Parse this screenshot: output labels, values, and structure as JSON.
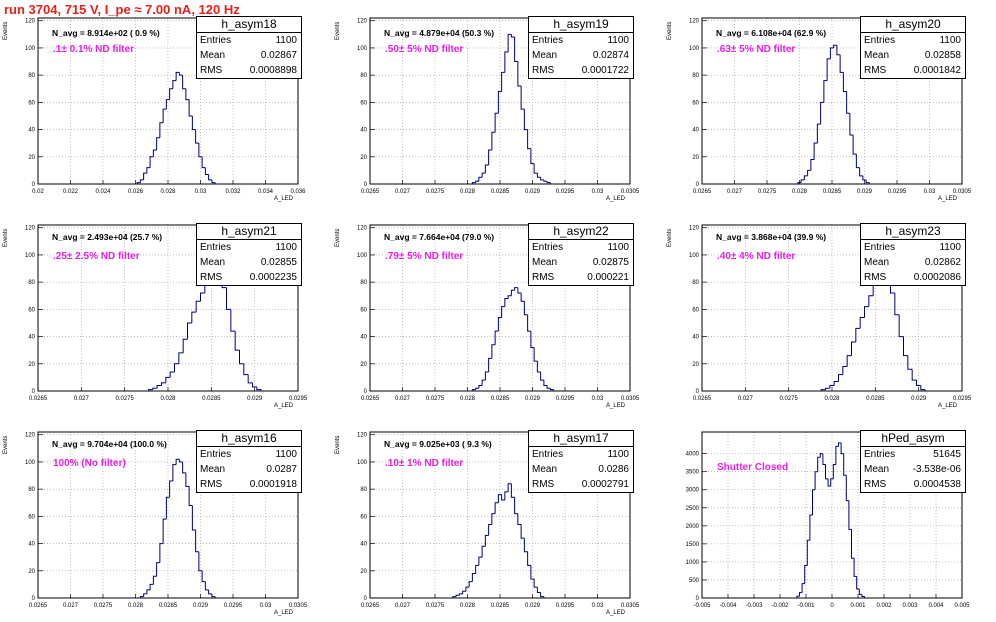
{
  "page_title": "run 3704,   715 V, I_pe ≈ 7.00 nA, 120 Hz",
  "chart_data": [
    {
      "type": "histogram",
      "name": "h_asym18",
      "entries": "1100",
      "mean": "0.02867",
      "rms": "0.0008898",
      "n_avg_text": "N_avg = 8.914e+02 ( 0.9 %)",
      "filter_text": ".1± 0.1% ND filter",
      "ylabel": "Events",
      "xlabel": "A_LED",
      "xlim": [
        0.02,
        0.036
      ],
      "ylim": [
        0,
        122
      ],
      "xticks": [
        0.02,
        0.022,
        0.024,
        0.026,
        0.028,
        0.03,
        0.032,
        0.034,
        0.036
      ],
      "xtick_labels": [
        "0.02",
        "0.022",
        "0.024",
        "0.026",
        "0.028",
        "0.03",
        "0.032",
        "0.034",
        "0.036"
      ],
      "yticks": [
        0,
        20,
        40,
        60,
        80,
        100,
        120
      ],
      "ytick_labels": [
        "0",
        "20",
        "40",
        "60",
        "80",
        "100",
        "120"
      ],
      "bin_width": 0.0002,
      "x": [
        0.0262,
        0.0264,
        0.0266,
        0.0268,
        0.027,
        0.0272,
        0.0274,
        0.0276,
        0.0278,
        0.028,
        0.0282,
        0.0284,
        0.0286,
        0.0288,
        0.029,
        0.0292,
        0.0294,
        0.0296,
        0.0298,
        0.03,
        0.0302,
        0.0304,
        0.0306,
        0.0308
      ],
      "values": [
        1,
        3,
        8,
        12,
        20,
        25,
        34,
        45,
        55,
        62,
        70,
        76,
        82,
        80,
        70,
        62,
        50,
        40,
        30,
        20,
        12,
        7,
        3,
        1
      ]
    },
    {
      "type": "histogram",
      "name": "h_asym19",
      "entries": "1100",
      "mean": "0.02874",
      "rms": "0.0001722",
      "n_avg_text": "N_avg = 4.879e+04 (50.3 %)",
      "filter_text": ".50± 5% ND filter",
      "ylabel": "Events",
      "xlabel": "A_LED",
      "xlim": [
        0.0265,
        0.0305
      ],
      "ylim": [
        0,
        122
      ],
      "xticks": [
        0.0265,
        0.027,
        0.0275,
        0.028,
        0.0285,
        0.029,
        0.0295,
        0.03,
        0.0305
      ],
      "xtick_labels": [
        "0.0265",
        "0.027",
        "0.0275",
        "0.028",
        "0.0285",
        "0.029",
        "0.0295",
        "0.03",
        "0.0305"
      ],
      "yticks": [
        0,
        20,
        40,
        60,
        80,
        100,
        120
      ],
      "ytick_labels": [
        "0",
        "20",
        "40",
        "60",
        "80",
        "100",
        "120"
      ],
      "bin_width": 5e-05,
      "x": [
        0.0281,
        0.02815,
        0.0282,
        0.02825,
        0.0283,
        0.02835,
        0.0284,
        0.02845,
        0.0285,
        0.02855,
        0.0286,
        0.02865,
        0.0287,
        0.02875,
        0.0288,
        0.02885,
        0.0289,
        0.02895,
        0.029,
        0.02905,
        0.0291,
        0.02915,
        0.0292,
        0.02925
      ],
      "values": [
        1,
        2,
        5,
        8,
        14,
        25,
        38,
        52,
        68,
        82,
        97,
        110,
        108,
        90,
        72,
        55,
        40,
        26,
        15,
        8,
        5,
        3,
        2,
        1
      ]
    },
    {
      "type": "histogram",
      "name": "h_asym20",
      "entries": "1100",
      "mean": "0.02858",
      "rms": "0.0001842",
      "n_avg_text": "N_avg = 6.108e+04 (62.9 %)",
      "filter_text": ".63± 5% ND filter",
      "ylabel": "Events",
      "xlabel": "A_LED",
      "xlim": [
        0.0265,
        0.0305
      ],
      "ylim": [
        0,
        122
      ],
      "xticks": [
        0.0265,
        0.027,
        0.0275,
        0.028,
        0.0285,
        0.029,
        0.0295,
        0.03,
        0.0305
      ],
      "xtick_labels": [
        "0.0265",
        "0.027",
        "0.0275",
        "0.028",
        "0.0285",
        "0.029",
        "0.0295",
        "0.03",
        "0.0305"
      ],
      "yticks": [
        0,
        20,
        40,
        60,
        80,
        100,
        120
      ],
      "ytick_labels": [
        "0",
        "20",
        "40",
        "60",
        "80",
        "100",
        "120"
      ],
      "bin_width": 5e-05,
      "x": [
        0.028,
        0.02805,
        0.0281,
        0.02815,
        0.0282,
        0.02825,
        0.0283,
        0.02835,
        0.0284,
        0.02845,
        0.0285,
        0.02855,
        0.0286,
        0.02865,
        0.0287,
        0.02875,
        0.0288,
        0.02885,
        0.0289,
        0.02895,
        0.029,
        0.02905
      ],
      "values": [
        1,
        3,
        6,
        10,
        18,
        30,
        44,
        60,
        76,
        92,
        100,
        102,
        95,
        82,
        68,
        52,
        36,
        22,
        12,
        6,
        3,
        1
      ]
    },
    {
      "type": "histogram",
      "name": "h_asym21",
      "entries": "1100",
      "mean": "0.02855",
      "rms": "0.0002235",
      "n_avg_text": "N_avg = 2.493e+04 (25.7 %)",
      "filter_text": ".25± 2.5% ND filter",
      "ylabel": "Events",
      "xlabel": "A_LED",
      "xlim": [
        0.0265,
        0.0295
      ],
      "ylim": [
        0,
        122
      ],
      "xticks": [
        0.0265,
        0.027,
        0.0275,
        0.028,
        0.0285,
        0.029,
        0.0295
      ],
      "xtick_labels": [
        "0.0265",
        "0.027",
        "0.0275",
        "0.028",
        "0.0285",
        "0.029",
        "0.0295"
      ],
      "yticks": [
        0,
        20,
        40,
        60,
        80,
        100,
        120
      ],
      "ytick_labels": [
        "0",
        "20",
        "40",
        "60",
        "80",
        "100",
        "120"
      ],
      "bin_width": 5e-05,
      "x": [
        0.0278,
        0.02785,
        0.0279,
        0.02795,
        0.028,
        0.02805,
        0.0281,
        0.02815,
        0.0282,
        0.02825,
        0.0283,
        0.02835,
        0.0284,
        0.02845,
        0.0285,
        0.02855,
        0.0286,
        0.02865,
        0.0287,
        0.02875,
        0.0288,
        0.02885,
        0.0289,
        0.02895,
        0.029,
        0.02905
      ],
      "values": [
        1,
        2,
        4,
        6,
        10,
        14,
        20,
        28,
        38,
        50,
        58,
        66,
        72,
        80,
        85,
        90,
        88,
        76,
        60,
        44,
        30,
        20,
        12,
        6,
        3,
        1
      ]
    },
    {
      "type": "histogram",
      "name": "h_asym22",
      "entries": "1100",
      "mean": "0.02875",
      "rms": "0.000221",
      "n_avg_text": "N_avg = 7.664e+04 (79.0 %)",
      "filter_text": ".79± 5% ND filter",
      "ylabel": "Events",
      "xlabel": "A_LED",
      "xlim": [
        0.0265,
        0.0305
      ],
      "ylim": [
        0,
        122
      ],
      "xticks": [
        0.0265,
        0.027,
        0.0275,
        0.028,
        0.0285,
        0.029,
        0.0295,
        0.03,
        0.0305
      ],
      "xtick_labels": [
        "0.0265",
        "0.027",
        "0.0275",
        "0.028",
        "0.0285",
        "0.029",
        "0.0295",
        "0.03",
        "0.0305"
      ],
      "yticks": [
        0,
        20,
        40,
        60,
        80,
        100,
        120
      ],
      "ytick_labels": [
        "0",
        "20",
        "40",
        "60",
        "80",
        "100",
        "120"
      ],
      "bin_width": 5e-05,
      "x": [
        0.0281,
        0.02815,
        0.0282,
        0.02825,
        0.0283,
        0.02835,
        0.0284,
        0.02845,
        0.0285,
        0.02855,
        0.0286,
        0.02865,
        0.0287,
        0.02875,
        0.0288,
        0.02885,
        0.0289,
        0.02895,
        0.029,
        0.02905,
        0.0291,
        0.02915,
        0.0292,
        0.02925,
        0.0293
      ],
      "values": [
        1,
        2,
        4,
        8,
        14,
        24,
        34,
        44,
        54,
        62,
        68,
        70,
        74,
        76,
        72,
        66,
        56,
        44,
        32,
        22,
        14,
        8,
        4,
        2,
        1
      ]
    },
    {
      "type": "histogram",
      "name": "h_asym23",
      "entries": "1100",
      "mean": "0.02862",
      "rms": "0.0002086",
      "n_avg_text": "N_avg = 3.868e+04 (39.9 %)",
      "filter_text": ".40± 4% ND filter",
      "ylabel": "Events",
      "xlabel": "A_LED",
      "xlim": [
        0.0265,
        0.0295
      ],
      "ylim": [
        0,
        122
      ],
      "xticks": [
        0.0265,
        0.027,
        0.0275,
        0.028,
        0.0285,
        0.029,
        0.0295
      ],
      "xtick_labels": [
        "0.0265",
        "0.027",
        "0.0275",
        "0.028",
        "0.0285",
        "0.029",
        "0.0295"
      ],
      "yticks": [
        0,
        20,
        40,
        60,
        80,
        100,
        120
      ],
      "ytick_labels": [
        "0",
        "20",
        "40",
        "60",
        "80",
        "100",
        "120"
      ],
      "bin_width": 5e-05,
      "x": [
        0.0279,
        0.02795,
        0.028,
        0.02805,
        0.0281,
        0.02815,
        0.0282,
        0.02825,
        0.0283,
        0.02835,
        0.0284,
        0.02845,
        0.0285,
        0.02855,
        0.0286,
        0.02865,
        0.0287,
        0.02875,
        0.0288,
        0.02885,
        0.0289,
        0.02895,
        0.029,
        0.02905
      ],
      "values": [
        1,
        2,
        4,
        7,
        12,
        18,
        26,
        36,
        46,
        54,
        62,
        70,
        78,
        86,
        92,
        86,
        72,
        56,
        40,
        26,
        16,
        8,
        4,
        1
      ]
    },
    {
      "type": "histogram",
      "name": "h_asym16",
      "entries": "1100",
      "mean": "0.0287",
      "rms": "0.0001918",
      "n_avg_text": "N_avg = 9.704e+04 (100.0 %)",
      "filter_text": "100% (No filter)",
      "ylabel": "Events",
      "xlabel": "A_LED",
      "xlim": [
        0.0265,
        0.0305
      ],
      "ylim": [
        0,
        122
      ],
      "xticks": [
        0.0265,
        0.027,
        0.0275,
        0.028,
        0.0285,
        0.029,
        0.0295,
        0.03,
        0.0305
      ],
      "xtick_labels": [
        "0.0265",
        "0.027",
        "0.0275",
        "0.028",
        "0.0285",
        "0.029",
        "0.0295",
        "0.03",
        "0.0305"
      ],
      "yticks": [
        0,
        20,
        40,
        60,
        80,
        100,
        120
      ],
      "ytick_labels": [
        "0",
        "20",
        "40",
        "60",
        "80",
        "100",
        "120"
      ],
      "bin_width": 5e-05,
      "x": [
        0.0281,
        0.02815,
        0.0282,
        0.02825,
        0.0283,
        0.02835,
        0.0284,
        0.02845,
        0.0285,
        0.02855,
        0.0286,
        0.02865,
        0.0287,
        0.02875,
        0.0288,
        0.02885,
        0.0289,
        0.02895,
        0.029,
        0.02905,
        0.0291,
        0.02915,
        0.0292
      ],
      "values": [
        1,
        3,
        6,
        10,
        16,
        26,
        40,
        58,
        74,
        86,
        98,
        102,
        100,
        92,
        82,
        68,
        50,
        34,
        20,
        12,
        6,
        3,
        1
      ]
    },
    {
      "type": "histogram",
      "name": "h_asym17",
      "entries": "1100",
      "mean": "0.0286",
      "rms": "0.0002791",
      "n_avg_text": "N_avg = 9.025e+03 ( 9.3 %)",
      "filter_text": ".10± 1% ND filter",
      "ylabel": "Events",
      "xlabel": "A_LED",
      "xlim": [
        0.0265,
        0.0305
      ],
      "ylim": [
        0,
        122
      ],
      "xticks": [
        0.0265,
        0.027,
        0.0275,
        0.028,
        0.0285,
        0.029,
        0.0295,
        0.03,
        0.0305
      ],
      "xtick_labels": [
        "0.0265",
        "0.027",
        "0.0275",
        "0.028",
        "0.0285",
        "0.029",
        "0.0295",
        "0.03",
        "0.0305"
      ],
      "yticks": [
        0,
        20,
        40,
        60,
        80,
        100,
        120
      ],
      "ytick_labels": [
        "0",
        "20",
        "40",
        "60",
        "80",
        "100",
        "120"
      ],
      "bin_width": 5e-05,
      "x": [
        0.0278,
        0.02785,
        0.0279,
        0.02795,
        0.028,
        0.02805,
        0.0281,
        0.02815,
        0.0282,
        0.02825,
        0.0283,
        0.02835,
        0.0284,
        0.02845,
        0.0285,
        0.02855,
        0.0286,
        0.02865,
        0.0287,
        0.02875,
        0.0288,
        0.02885,
        0.0289,
        0.02895,
        0.029,
        0.02905,
        0.0291,
        0.02915
      ],
      "values": [
        1,
        2,
        3,
        5,
        8,
        12,
        18,
        24,
        30,
        38,
        46,
        54,
        62,
        70,
        76,
        72,
        78,
        84,
        74,
        62,
        54,
        44,
        34,
        24,
        14,
        8,
        4,
        1
      ]
    },
    {
      "type": "histogram",
      "name": "hPed_asym",
      "entries": "51645",
      "mean": "-3.538e-06",
      "rms": "0.0004538",
      "n_avg_text": "",
      "filter_text": "Shutter Closed",
      "ylabel": "",
      "xlabel": "",
      "xlim": [
        -0.005,
        0.005
      ],
      "ylim": [
        0,
        4600
      ],
      "xticks": [
        -0.005,
        -0.004,
        -0.003,
        -0.002,
        -0.001,
        0,
        0.001,
        0.002,
        0.003,
        0.004,
        0.005
      ],
      "xtick_labels": [
        "-0.005",
        "-0.004",
        "-0.003",
        "-0.002",
        "-0.001",
        "0",
        "0.001",
        "0.002",
        "0.003",
        "0.004",
        "0.005"
      ],
      "yticks": [
        0,
        500,
        1000,
        1500,
        2000,
        2500,
        3000,
        3500,
        4000
      ],
      "ytick_labels": [
        "0",
        "500",
        "1000",
        "1500",
        "2000",
        "2500",
        "3000",
        "3500",
        "4000"
      ],
      "bin_width": 0.0001,
      "x": [
        -0.0013,
        -0.0012,
        -0.0011,
        -0.001,
        -0.0009,
        -0.0008,
        -0.0007,
        -0.0006,
        -0.0005,
        -0.0004,
        -0.0003,
        -0.0002,
        -0.0001,
        0,
        0.0001,
        0.0002,
        0.0003,
        0.0004,
        0.0005,
        0.0006,
        0.0007,
        0.0008,
        0.0009,
        0.001,
        0.0011,
        0.0012
      ],
      "values": [
        50,
        150,
        400,
        900,
        1600,
        2300,
        3000,
        3500,
        3900,
        4000,
        3700,
        3300,
        3100,
        3300,
        3700,
        4200,
        4300,
        4000,
        3400,
        2700,
        1900,
        1100,
        600,
        250,
        100,
        40
      ]
    }
  ]
}
